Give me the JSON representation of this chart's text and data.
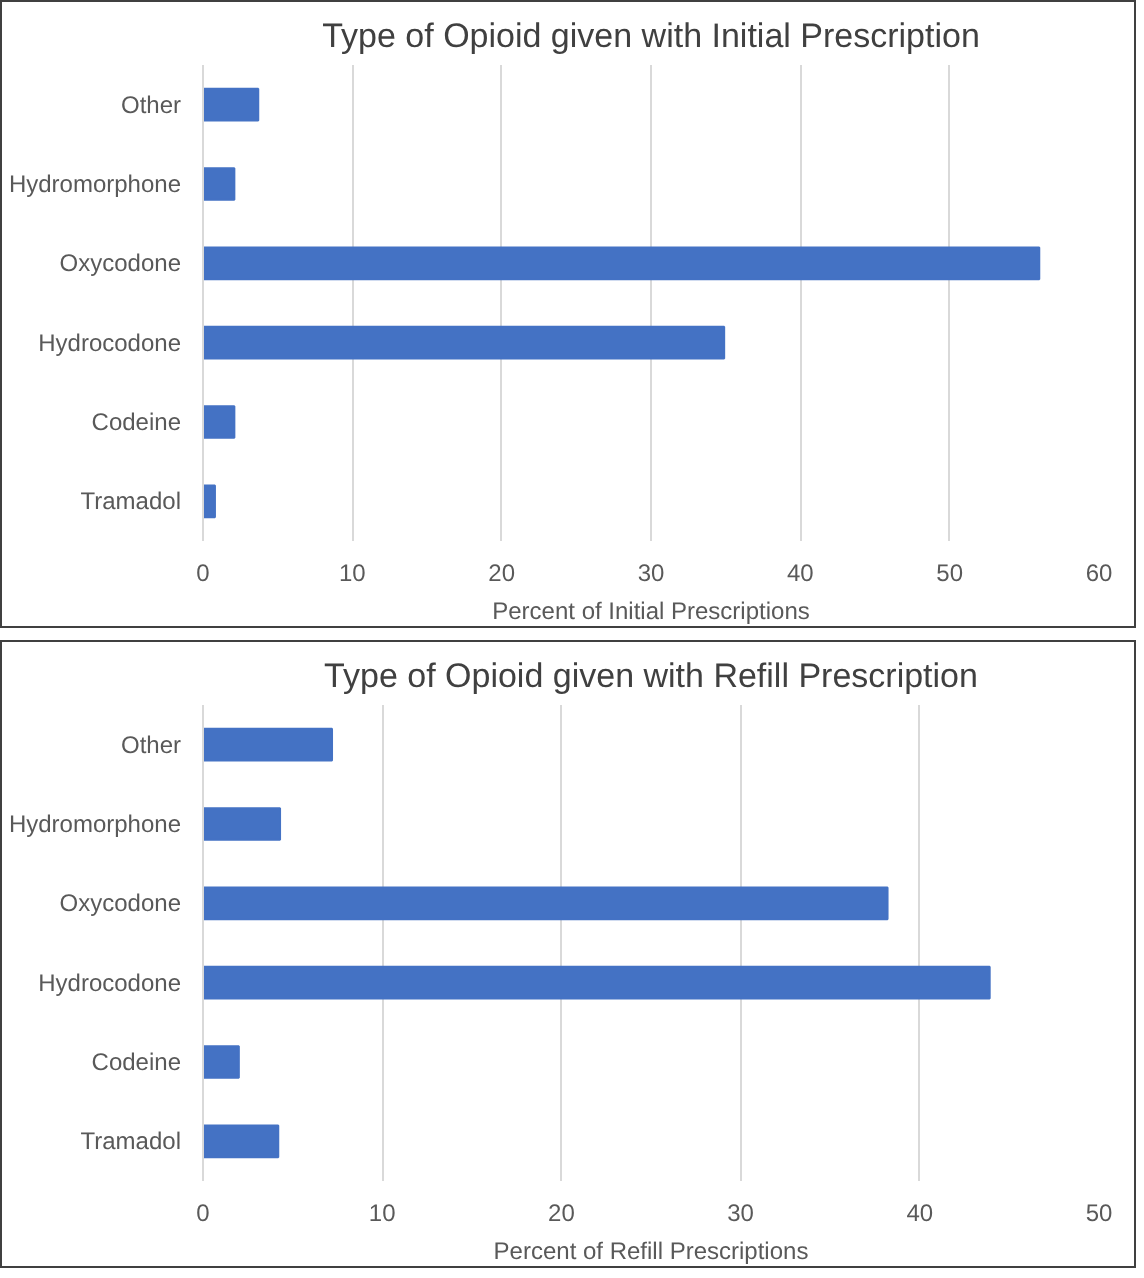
{
  "chart_data": [
    {
      "type": "bar",
      "orientation": "horizontal",
      "title": "Type of Opioid given with Initial Prescription",
      "xlabel": "Percent of Initial Prescriptions",
      "categories": [
        "Other",
        "Hydromorphone",
        "Oxycodone",
        "Hydrocodone",
        "Codeine",
        "Tramadol"
      ],
      "values": [
        3.7,
        2.1,
        56.0,
        34.9,
        2.1,
        0.8
      ],
      "color": "#4472c4",
      "xlim": [
        0,
        60
      ],
      "xticks": [
        0,
        10,
        20,
        30,
        40,
        50,
        60
      ],
      "grid": "x"
    },
    {
      "type": "bar",
      "orientation": "horizontal",
      "title": "Type of Opioid given with Refill Prescription",
      "xlabel": "Percent of Refill Prescriptions",
      "categories": [
        "Other",
        "Hydromorphone",
        "Oxycodone",
        "Hydrocodone",
        "Codeine",
        "Tramadol"
      ],
      "values": [
        7.2,
        4.3,
        38.2,
        43.9,
        2.0,
        4.2
      ],
      "color": "#4472c4",
      "xlim": [
        0,
        50
      ],
      "xticks": [
        0,
        10,
        20,
        30,
        40,
        50
      ],
      "grid": "x"
    }
  ]
}
